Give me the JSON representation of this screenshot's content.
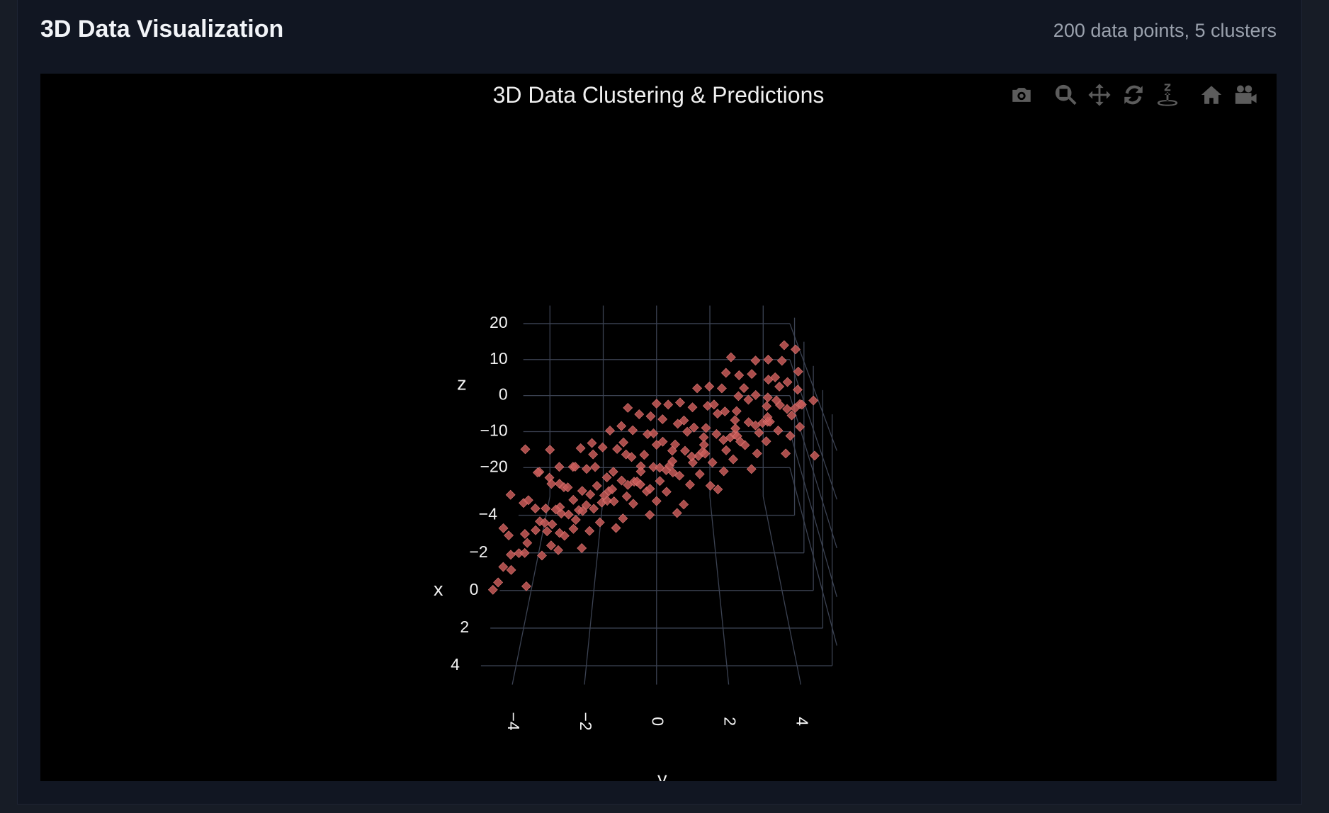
{
  "header": {
    "title": "3D Data Visualization",
    "meta": "200 data points, 5 clusters"
  },
  "modebar": [
    {
      "icon": "camera-icon",
      "label": "Download plot as a png"
    },
    {
      "icon": "zoom-icon",
      "label": "Zoom"
    },
    {
      "icon": "pan-icon",
      "label": "Pan"
    },
    {
      "icon": "orbit-rotation-icon",
      "label": "Orbital rotation"
    },
    {
      "icon": "turntable-rotation-icon",
      "label": "Turntable rotation"
    },
    {
      "icon": "home-icon",
      "label": "Reset camera"
    },
    {
      "icon": "video-camera-icon",
      "label": "Save camera"
    }
  ],
  "chart_data": {
    "type": "scatter3d",
    "title": "3D Data Clustering & Predictions",
    "xlabel": "x",
    "ylabel": "y",
    "zlabel": "z",
    "x_ticks": [
      "−4",
      "−2",
      "0",
      "2",
      "4"
    ],
    "y_ticks": [
      "−4",
      "−2",
      "0",
      "2",
      "4"
    ],
    "z_ticks": [
      "−20",
      "−10",
      "0",
      "10",
      "20"
    ],
    "xlim": [
      -5,
      5
    ],
    "ylim": [
      -5,
      5
    ],
    "zlim": [
      -28,
      25
    ],
    "grid": true,
    "marker": {
      "symbol": "diamond",
      "color": "#c85a58",
      "opacity": 0.85
    },
    "background": "#000000",
    "grid_color": "#3b4252",
    "points": [
      [
        -1.2,
        -4.4,
        -12.1
      ],
      [
        0.8,
        -4.1,
        -11.5
      ],
      [
        2.1,
        -4.6,
        -14.0
      ],
      [
        -0.3,
        -3.9,
        -9.8
      ],
      [
        1.5,
        -4.2,
        -13.2
      ],
      [
        -2.2,
        -4.0,
        -8.5
      ],
      [
        0.2,
        -3.7,
        -10.9
      ],
      [
        2.6,
        -4.3,
        -12.8
      ],
      [
        -1.7,
        -3.6,
        -7.9
      ],
      [
        1.1,
        -4.5,
        -15.1
      ],
      [
        0.5,
        -3.8,
        -11.8
      ],
      [
        -0.9,
        -4.2,
        -10.2
      ],
      [
        1.9,
        -3.9,
        -9.4
      ],
      [
        -2.5,
        -4.1,
        -9.9
      ],
      [
        0.1,
        -4.7,
        -14.6
      ],
      [
        2.9,
        -4.8,
        -16.0
      ],
      [
        -1.4,
        -3.5,
        -8.2
      ],
      [
        0.9,
        -3.4,
        -10.5
      ],
      [
        1.7,
        -4.0,
        -12.4
      ],
      [
        -0.6,
        -3.6,
        -11.0
      ],
      [
        -1.1,
        -3.2,
        -7.0
      ],
      [
        0.4,
        -3.0,
        -8.3
      ],
      [
        2.2,
        -2.9,
        -6.1
      ],
      [
        -2.0,
        -3.3,
        -6.4
      ],
      [
        1.3,
        -2.7,
        -5.2
      ],
      [
        -0.2,
        -3.1,
        -9.1
      ],
      [
        0.7,
        -2.6,
        -4.0
      ],
      [
        2.5,
        -3.4,
        -10.0
      ],
      [
        -1.6,
        -2.8,
        -4.8
      ],
      [
        1.0,
        -2.5,
        -7.5
      ],
      [
        -0.5,
        -3.0,
        -5.5
      ],
      [
        1.6,
        -2.8,
        -8.9
      ],
      [
        -2.3,
        -2.6,
        -2.9
      ],
      [
        0.3,
        -3.3,
        -11.2
      ],
      [
        2.0,
        -2.5,
        -5.9
      ],
      [
        -0.8,
        -2.9,
        -6.7
      ],
      [
        1.2,
        -3.1,
        -4.4
      ],
      [
        -1.3,
        -2.7,
        -3.6
      ],
      [
        0.6,
        -3.5,
        -9.7
      ],
      [
        2.7,
        -2.9,
        -8.1
      ],
      [
        -1.0,
        -2.3,
        -3.0
      ],
      [
        0.2,
        -2.1,
        -4.6
      ],
      [
        1.8,
        -1.9,
        -2.1
      ],
      [
        -2.1,
        -2.2,
        -0.8
      ],
      [
        0.9,
        -1.7,
        -3.9
      ],
      [
        -0.4,
        -2.4,
        -6.0
      ],
      [
        1.4,
        -1.6,
        -0.5
      ],
      [
        2.3,
        -2.0,
        -5.3
      ],
      [
        -1.5,
        -1.8,
        0.4
      ],
      [
        0.5,
        -1.5,
        -2.7
      ],
      [
        -0.7,
        -2.0,
        -1.4
      ],
      [
        1.1,
        -2.4,
        -4.9
      ],
      [
        -2.4,
        -1.6,
        1.2
      ],
      [
        0.0,
        -1.9,
        -3.3
      ],
      [
        2.1,
        -1.7,
        -4.1
      ],
      [
        -1.2,
        -2.1,
        -0.2
      ],
      [
        0.8,
        -2.3,
        -6.2
      ],
      [
        1.6,
        -1.5,
        -1.0
      ],
      [
        -0.3,
        -1.6,
        -2.4
      ],
      [
        2.8,
        -2.2,
        -7.3
      ],
      [
        -1.1,
        -1.3,
        1.5
      ],
      [
        0.4,
        -1.1,
        -0.6
      ],
      [
        1.9,
        -0.9,
        1.0
      ],
      [
        -2.2,
        -1.2,
        3.1
      ],
      [
        0.7,
        -0.7,
        0.2
      ],
      [
        -0.5,
        -1.4,
        -1.8
      ],
      [
        1.3,
        -0.6,
        2.3
      ],
      [
        2.4,
        -1.0,
        -2.2
      ],
      [
        -1.7,
        -0.8,
        3.9
      ],
      [
        0.1,
        -0.5,
        1.7
      ],
      [
        -0.9,
        -1.0,
        0.9
      ],
      [
        1.5,
        -1.3,
        -1.5
      ],
      [
        -2.6,
        -0.6,
        4.6
      ],
      [
        0.6,
        -0.9,
        -0.9
      ],
      [
        2.0,
        -0.7,
        -0.3
      ],
      [
        -1.4,
        -1.1,
        2.0
      ],
      [
        0.3,
        -1.4,
        -3.0
      ],
      [
        1.0,
        -0.5,
        0.6
      ],
      [
        -0.2,
        -0.8,
        2.8
      ],
      [
        2.6,
        -1.2,
        -3.6
      ],
      [
        -1.3,
        -0.3,
        4.4
      ],
      [
        0.5,
        -0.1,
        2.9
      ],
      [
        1.8,
        0.1,
        4.1
      ],
      [
        -2.0,
        -0.2,
        6.3
      ],
      [
        0.8,
        0.3,
        3.2
      ],
      [
        -0.6,
        -0.4,
        1.9
      ],
      [
        1.2,
        0.4,
        5.6
      ],
      [
        2.3,
        0.0,
        1.3
      ],
      [
        -1.6,
        0.2,
        7.0
      ],
      [
        0.0,
        0.5,
        5.0
      ],
      [
        -0.8,
        0.0,
        3.6
      ],
      [
        1.6,
        -0.3,
        1.1
      ],
      [
        -2.4,
        0.4,
        7.8
      ],
      [
        0.4,
        0.1,
        2.4
      ],
      [
        2.1,
        0.3,
        2.7
      ],
      [
        -1.1,
        -0.1,
        5.3
      ],
      [
        0.2,
        -0.5,
        0.8
      ],
      [
        1.4,
        0.5,
        4.7
      ],
      [
        -0.3,
        0.2,
        6.1
      ],
      [
        2.7,
        -0.2,
        -0.4
      ],
      [
        -1.2,
        0.7,
        7.3
      ],
      [
        0.3,
        0.9,
        6.0
      ],
      [
        1.7,
        1.1,
        7.9
      ],
      [
        -2.1,
        0.8,
        9.4
      ],
      [
        0.9,
        1.3,
        6.8
      ],
      [
        -0.4,
        0.6,
        5.1
      ],
      [
        1.3,
        1.4,
        9.0
      ],
      [
        2.2,
        1.0,
        4.6
      ],
      [
        -1.5,
        1.2,
        10.3
      ],
      [
        0.1,
        1.5,
        8.5
      ],
      [
        -0.7,
        1.0,
        7.1
      ],
      [
        1.5,
        0.7,
        4.3
      ],
      [
        -2.5,
        1.4,
        11.6
      ],
      [
        0.6,
        1.1,
        5.7
      ],
      [
        2.0,
        1.3,
        6.3
      ],
      [
        -1.0,
        0.9,
        8.8
      ],
      [
        0.4,
        0.5,
        3.9
      ],
      [
        1.1,
        1.5,
        8.0
      ],
      [
        -0.2,
        1.2,
        9.8
      ],
      [
        2.8,
        0.8,
        2.2
      ],
      [
        -1.4,
        1.7,
        11.0
      ],
      [
        0.2,
        1.9,
        9.6
      ],
      [
        1.9,
        2.1,
        11.3
      ],
      [
        -2.2,
        1.8,
        13.1
      ],
      [
        0.7,
        2.3,
        10.4
      ],
      [
        -0.5,
        1.6,
        8.7
      ],
      [
        1.2,
        2.4,
        12.7
      ],
      [
        2.4,
        2.0,
        8.2
      ],
      [
        -1.8,
        2.2,
        14.0
      ],
      [
        0.0,
        2.5,
        12.2
      ],
      [
        -0.9,
        2.0,
        10.8
      ],
      [
        1.6,
        1.7,
        7.6
      ],
      [
        -2.6,
        2.4,
        15.2
      ],
      [
        0.5,
        2.1,
        9.2
      ],
      [
        2.1,
        2.3,
        9.9
      ],
      [
        -1.2,
        1.9,
        12.0
      ],
      [
        0.3,
        1.5,
        7.4
      ],
      [
        1.0,
        2.5,
        11.7
      ],
      [
        -0.3,
        2.2,
        13.3
      ],
      [
        2.9,
        1.8,
        5.8
      ],
      [
        -1.1,
        2.7,
        14.4
      ],
      [
        0.4,
        2.9,
        13.0
      ],
      [
        1.8,
        3.1,
        14.9
      ],
      [
        -2.0,
        2.8,
        16.6
      ],
      [
        0.8,
        3.3,
        14.1
      ],
      [
        -0.6,
        2.6,
        12.4
      ],
      [
        1.4,
        3.4,
        16.2
      ],
      [
        2.3,
        3.0,
        11.8
      ],
      [
        -1.7,
        3.2,
        17.9
      ],
      [
        0.1,
        3.5,
        15.8
      ],
      [
        -0.8,
        3.0,
        14.5
      ],
      [
        1.5,
        2.7,
        11.2
      ],
      [
        -2.4,
        3.4,
        19.0
      ],
      [
        0.6,
        3.1,
        12.9
      ],
      [
        2.0,
        3.3,
        13.6
      ],
      [
        -1.3,
        2.9,
        15.7
      ],
      [
        0.2,
        2.5,
        10.9
      ],
      [
        1.1,
        3.5,
        15.3
      ],
      [
        -0.4,
        3.2,
        16.9
      ],
      [
        2.7,
        2.8,
        9.6
      ],
      [
        -1.2,
        3.7,
        18.1
      ],
      [
        0.3,
        3.9,
        16.7
      ],
      [
        1.7,
        4.1,
        18.5
      ],
      [
        -2.1,
        3.8,
        20.2
      ],
      [
        0.9,
        4.3,
        17.8
      ],
      [
        -0.5,
        3.6,
        16.0
      ],
      [
        1.3,
        4.4,
        19.9
      ],
      [
        2.2,
        4.0,
        15.4
      ],
      [
        -1.6,
        4.2,
        21.5
      ],
      [
        0.0,
        4.5,
        19.4
      ],
      [
        -0.7,
        4.0,
        18.0
      ],
      [
        1.6,
        3.7,
        14.8
      ],
      [
        -2.5,
        4.4,
        22.6
      ],
      [
        0.5,
        4.1,
        16.4
      ],
      [
        2.1,
        4.3,
        17.1
      ],
      [
        -1.0,
        3.9,
        19.3
      ],
      [
        0.4,
        3.5,
        14.2
      ],
      [
        1.0,
        4.5,
        18.9
      ],
      [
        -0.2,
        4.2,
        20.6
      ],
      [
        2.8,
        3.8,
        13.3
      ],
      [
        -3.0,
        -4.6,
        -6.0
      ],
      [
        3.1,
        -3.8,
        -14.5
      ],
      [
        -2.8,
        -1.0,
        5.5
      ],
      [
        3.0,
        0.6,
        1.0
      ],
      [
        -2.9,
        2.6,
        18.2
      ],
      [
        3.2,
        4.6,
        14.0
      ],
      [
        -0.1,
        -4.9,
        -13.7
      ],
      [
        1.4,
        4.8,
        21.0
      ],
      [
        -1.9,
        4.7,
        23.4
      ],
      [
        0.6,
        -2.2,
        -5.6
      ],
      [
        2.5,
        -4.7,
        -15.9
      ],
      [
        -2.7,
        -3.7,
        -4.9
      ],
      [
        1.2,
        -0.2,
        0.3
      ],
      [
        -1.0,
        -4.8,
        -9.3
      ],
      [
        0.9,
        2.6,
        10.1
      ],
      [
        -0.6,
        4.6,
        21.9
      ],
      [
        2.4,
        1.6,
        5.0
      ],
      [
        -2.3,
        0.0,
        8.4
      ],
      [
        1.7,
        -3.2,
        -10.7
      ],
      [
        0.2,
        3.8,
        17.5
      ]
    ]
  }
}
